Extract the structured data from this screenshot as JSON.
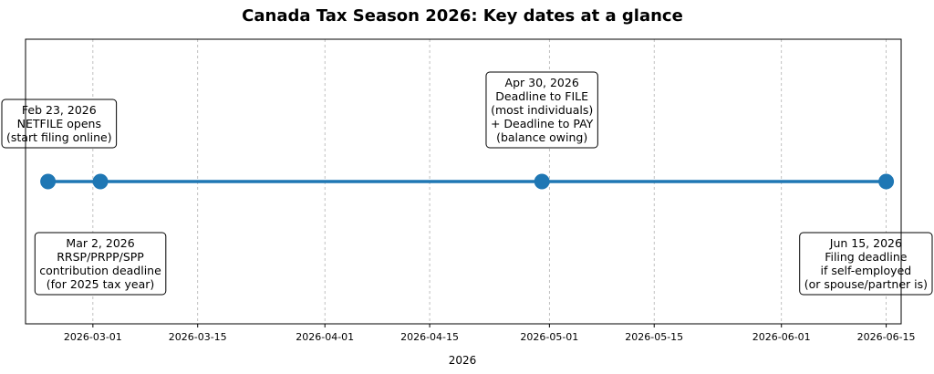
{
  "chart_data": {
    "type": "scatter",
    "title": "Canada Tax Season 2026: Key dates at a glance",
    "xlabel": "2026",
    "ylabel": "",
    "xlim": [
      "2026-02-20",
      "2026-06-17"
    ],
    "grid": "vertical dashed",
    "legend": "none",
    "colors": {
      "line": "#1f77b4",
      "point": "#1f77b4",
      "grid": "#b0b0b0",
      "box_border": "#000000"
    },
    "xticks": [
      {
        "date": "2026-03-01",
        "label": "2026-03-01"
      },
      {
        "date": "2026-03-15",
        "label": "2026-03-15"
      },
      {
        "date": "2026-04-01",
        "label": "2026-04-01"
      },
      {
        "date": "2026-04-15",
        "label": "2026-04-15"
      },
      {
        "date": "2026-05-01",
        "label": "2026-05-01"
      },
      {
        "date": "2026-05-15",
        "label": "2026-05-15"
      },
      {
        "date": "2026-06-01",
        "label": "2026-06-01"
      },
      {
        "date": "2026-06-15",
        "label": "2026-06-15"
      }
    ],
    "events": [
      {
        "date": "2026-02-23",
        "side": "above",
        "lines": [
          "Feb 23, 2026",
          "NETFILE opens",
          "(start filing online)"
        ]
      },
      {
        "date": "2026-03-02",
        "side": "below",
        "lines": [
          "Mar 2, 2026",
          "RRSP/PRPP/SPP",
          "contribution deadline",
          "(for 2025 tax year)"
        ]
      },
      {
        "date": "2026-04-30",
        "side": "above",
        "lines": [
          "Apr 30, 2026",
          "Deadline to FILE",
          "(most individuals)",
          "+ Deadline to PAY",
          "(balance owing)"
        ]
      },
      {
        "date": "2026-06-15",
        "side": "below",
        "lines": [
          "Jun 15, 2026",
          "Filing deadline",
          "if self-employed",
          "(or spouse/partner is)"
        ]
      }
    ]
  }
}
